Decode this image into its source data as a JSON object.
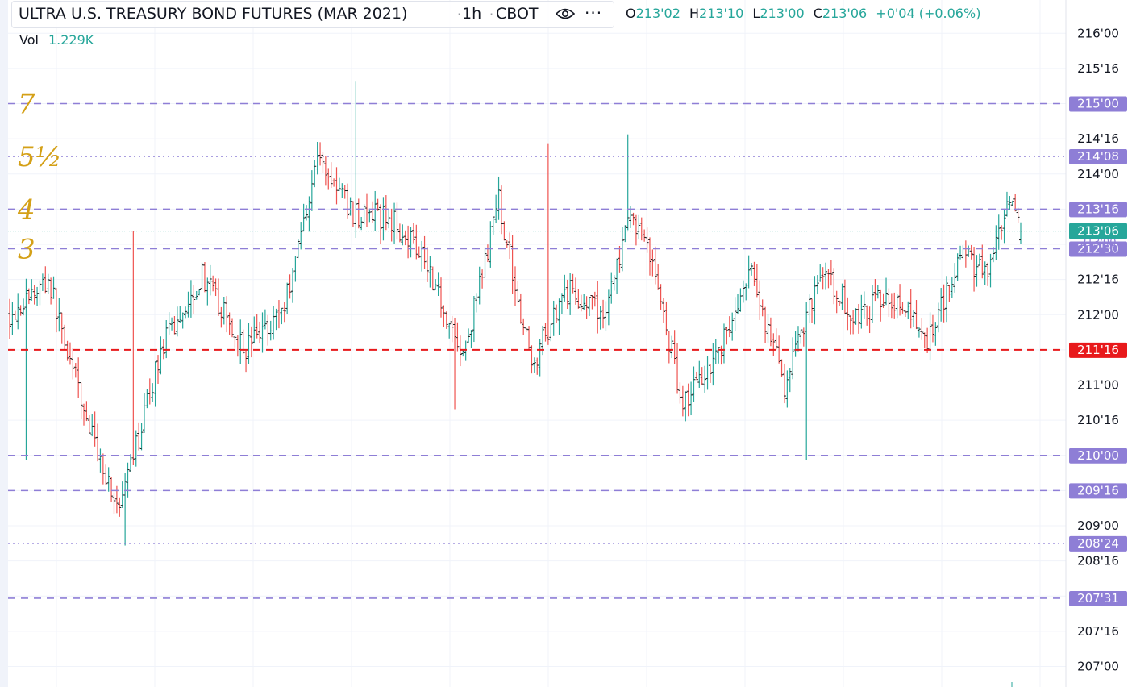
{
  "header": {
    "symbol": "ULTRA U.S. TREASURY BOND FUTURES (MAR 2021)",
    "separator": "·",
    "interval": "1h",
    "exchange": "CBOT",
    "icons": {
      "visibility": "eye-icon",
      "more": "more-horizontal-icon"
    },
    "more_glyph": "···",
    "ohlc": {
      "o_label": "O",
      "o_value": "213'02",
      "h_label": "H",
      "h_value": "213'10",
      "l_label": "L",
      "l_value": "213'00",
      "c_label": "C",
      "c_value": "213'06",
      "change": "+0'04 (+0.06%)"
    },
    "volume": {
      "label": "Vol",
      "value": "1.229K"
    }
  },
  "colors": {
    "up": "#26a69a",
    "down": "#ef5350",
    "up_wick": "#2f8f86",
    "down_wick": "#e06666",
    "level_line": "#8e7ed6",
    "level_label_bg": "#8e7ed6",
    "red_line": "#e8191b",
    "current_price_line": "#26a69a",
    "annotation_ink": "#d4a017",
    "grid": "#f0f3fa",
    "axis_text": "#131722"
  },
  "annotations": [
    "7",
    "5½",
    "4",
    "3"
  ],
  "chart_data": {
    "type": "ohlc",
    "title": "ULTRA U.S. TREASURY BOND FUTURES (MAR 2021)",
    "interval": "1h",
    "price_format": "32nds",
    "ylim": [
      "206'26",
      "216'12"
    ],
    "y_ticks": [
      "207'00",
      "207'16",
      "208'00",
      "208'16",
      "209'00",
      "209'16",
      "210'00",
      "210'16",
      "211'00",
      "211'16",
      "212'00",
      "212'16",
      "213'00",
      "213'16",
      "214'00",
      "214'16",
      "215'00",
      "215'16",
      "216'00",
      "216'16"
    ],
    "y_tick_labels_shown": [
      "207'00",
      "207'16",
      "208'16",
      "209'00",
      "210'16",
      "211'00",
      "212'00",
      "212'16",
      "214'00",
      "214'16",
      "215'16",
      "216'00"
    ],
    "horizontal_levels": [
      {
        "price": "215'00",
        "style": "dashed",
        "color": "purple",
        "annotation": "7"
      },
      {
        "price": "214'08",
        "style": "dotted",
        "color": "purple",
        "annotation": "5½"
      },
      {
        "price": "213'16",
        "style": "dashed",
        "color": "purple",
        "annotation": "4"
      },
      {
        "price": "212'30",
        "style": "dashed",
        "color": "purple",
        "annotation": "3"
      },
      {
        "price": "211'16",
        "style": "dashed",
        "color": "red"
      },
      {
        "price": "210'00",
        "style": "dashed",
        "color": "purple"
      },
      {
        "price": "209'16",
        "style": "dashed",
        "color": "purple"
      },
      {
        "price": "208'24",
        "style": "dotted",
        "color": "purple"
      },
      {
        "price": "207'31",
        "style": "dashed",
        "color": "purple"
      }
    ],
    "current_price": "213'06",
    "hidden_label_fragment": "213'00",
    "key_points": [
      {
        "idx": 0,
        "price": "212'00"
      },
      {
        "idx": 14,
        "price": "212'16"
      },
      {
        "idx": 28,
        "price": "210'16"
      },
      {
        "idx": 40,
        "price": "209'06"
      },
      {
        "idx": 55,
        "price": "211'16"
      },
      {
        "idx": 70,
        "price": "212'18"
      },
      {
        "idx": 85,
        "price": "211'16"
      },
      {
        "idx": 100,
        "price": "212'04"
      },
      {
        "idx": 112,
        "price": "214'08"
      },
      {
        "idx": 125,
        "price": "213'14"
      },
      {
        "idx": 138,
        "price": "213'12"
      },
      {
        "idx": 150,
        "price": "212'30"
      },
      {
        "idx": 165,
        "price": "211'12"
      },
      {
        "idx": 178,
        "price": "213'20"
      },
      {
        "idx": 190,
        "price": "211'08"
      },
      {
        "idx": 202,
        "price": "212'12"
      },
      {
        "idx": 216,
        "price": "212'00"
      },
      {
        "idx": 226,
        "price": "213'12"
      },
      {
        "idx": 232,
        "price": "213'02"
      },
      {
        "idx": 245,
        "price": "210'24"
      },
      {
        "idx": 258,
        "price": "211'16"
      },
      {
        "idx": 270,
        "price": "212'18"
      },
      {
        "idx": 282,
        "price": "211'00"
      },
      {
        "idx": 295,
        "price": "212'20"
      },
      {
        "idx": 308,
        "price": "211'30"
      },
      {
        "idx": 320,
        "price": "212'10"
      },
      {
        "idx": 334,
        "price": "211'20"
      },
      {
        "idx": 346,
        "price": "212'28"
      },
      {
        "idx": 356,
        "price": "212'18"
      },
      {
        "idx": 364,
        "price": "213'18"
      },
      {
        "idx": 368,
        "price": "213'06"
      }
    ],
    "wick_extremes": [
      {
        "idx": 126,
        "high": "215'10"
      },
      {
        "idx": 42,
        "low": "208'23"
      },
      {
        "idx": 290,
        "low": "209'30"
      },
      {
        "idx": 6,
        "low": "209'30"
      },
      {
        "idx": 45,
        "high": "213'06"
      },
      {
        "idx": 162,
        "low": "210'21"
      },
      {
        "idx": 225,
        "high": "214'18"
      },
      {
        "idx": 196,
        "high": "214'14"
      }
    ]
  }
}
